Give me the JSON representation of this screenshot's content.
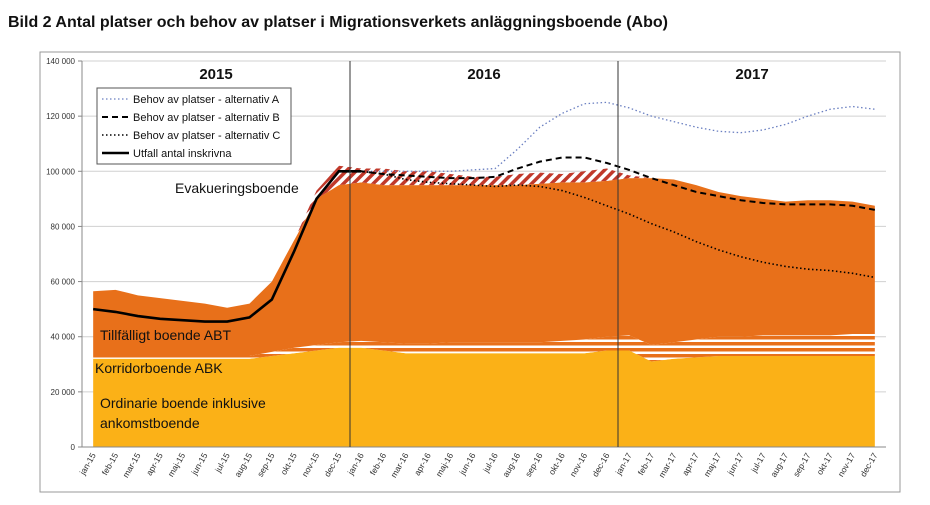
{
  "chart_data": {
    "type": "area",
    "title": "Bild 2 Antal platser och behov av platser i Migrationsverkets anläggningsboende (Abo)",
    "categories": [
      "jan-15",
      "feb-15",
      "mar-15",
      "apr-15",
      "maj-15",
      "jun-15",
      "jul-15",
      "aug-15",
      "sep-15",
      "okt-15",
      "nov-15",
      "dec-15",
      "jan-16",
      "feb-16",
      "mar-16",
      "apr-16",
      "maj-16",
      "jun-16",
      "jul-16",
      "aug-16",
      "sep-16",
      "okt-16",
      "nov-16",
      "dec-16",
      "jan-17",
      "feb-17",
      "mar-17",
      "apr-17",
      "maj-17",
      "jun-17",
      "jul-17",
      "aug-17",
      "sep-17",
      "okt-17",
      "nov-17",
      "dec-17"
    ],
    "year_labels": [
      "2015",
      "2016",
      "2017"
    ],
    "ylim": [
      0,
      140000
    ],
    "yticks": [
      0,
      {
        "value": 20000,
        "label": "20 000"
      },
      {
        "value": 40000,
        "label": "40 000"
      },
      {
        "value": 60000,
        "label": "60 000"
      },
      {
        "value": 80000,
        "label": "80 000"
      },
      {
        "value": 100000,
        "label": "100 000"
      },
      {
        "value": 120000,
        "label": "120 000"
      },
      {
        "value": 140000,
        "label": "140 000"
      }
    ],
    "grid": true,
    "legend": "upper left",
    "areas": [
      {
        "name": "Ordinarie boende inklusive ankomstboende",
        "color": "#fbb117",
        "fill": "solid",
        "values": [
          32000,
          32000,
          32000,
          32000,
          32000,
          32000,
          32000,
          32000,
          33000,
          34000,
          35000,
          36000,
          36000,
          35000,
          34000,
          34000,
          34000,
          34000,
          34000,
          34000,
          34000,
          34000,
          34000,
          35000,
          35000,
          31000,
          32000,
          32500,
          33000,
          33000,
          33000,
          33000,
          33000,
          33000,
          33000,
          33000
        ]
      },
      {
        "name": "Korridorboende ABK",
        "color": "#e8701a",
        "fill": "stripes",
        "values": [
          1000,
          1000,
          1000,
          1000,
          1000,
          1000,
          1000,
          1000,
          1500,
          2000,
          2000,
          2000,
          2500,
          3000,
          3500,
          3500,
          4000,
          4000,
          4000,
          4000,
          4000,
          4500,
          5000,
          5000,
          5500,
          6000,
          6000,
          6500,
          7000,
          7000,
          7500,
          7500,
          7500,
          7500,
          8000,
          8000
        ]
      },
      {
        "name": "Tillfälligt boende ABT",
        "color": "#e8701a",
        "fill": "solid",
        "values": [
          23500,
          24000,
          22000,
          21000,
          20000,
          19000,
          17500,
          19000,
          25500,
          39000,
          53000,
          57000,
          57500,
          57000,
          57500,
          57500,
          57000,
          57000,
          57000,
          57000,
          57500,
          57500,
          57000,
          56500,
          57000,
          60500,
          59000,
          56000,
          52500,
          51000,
          49500,
          48500,
          49000,
          49000,
          48000,
          46500
        ]
      },
      {
        "name": "Evakueringsboende",
        "color": "#c0392b",
        "fill": "hatch",
        "values": [
          0,
          0,
          0,
          0,
          0,
          0,
          0,
          0,
          0,
          0,
          3000,
          7000,
          5000,
          6000,
          5000,
          5000,
          4000,
          3000,
          3000,
          4000,
          4000,
          3000,
          4000,
          4500,
          1000,
          0,
          0,
          0,
          0,
          0,
          0,
          0,
          0,
          0,
          0,
          0
        ]
      }
    ],
    "series": [
      {
        "name": "Behov av platser - alternativ A",
        "color": "#6a7fc1",
        "dash": "dotted-fine",
        "values": [
          null,
          null,
          null,
          null,
          null,
          null,
          null,
          null,
          null,
          null,
          null,
          100000,
          100000,
          100000,
          100000,
          100000,
          100000,
          100500,
          101000,
          108000,
          116000,
          121000,
          124500,
          125000,
          123000,
          120000,
          118000,
          116000,
          114500,
          114000,
          115000,
          117000,
          120000,
          122500,
          123500,
          122500
        ]
      },
      {
        "name": "Behov av platser - alternativ B",
        "color": "#000000",
        "dash": "dashed",
        "values": [
          null,
          null,
          null,
          null,
          null,
          null,
          null,
          null,
          null,
          null,
          null,
          100000,
          100000,
          99000,
          98500,
          98000,
          97500,
          97500,
          98000,
          101000,
          103500,
          105000,
          105000,
          103000,
          100500,
          97500,
          95000,
          92500,
          91000,
          89500,
          88500,
          88000,
          88000,
          88000,
          87500,
          86000
        ]
      },
      {
        "name": "Behov av platser - alternativ C",
        "color": "#000000",
        "dash": "dotted",
        "values": [
          null,
          null,
          null,
          null,
          null,
          null,
          null,
          null,
          null,
          null,
          null,
          100000,
          100000,
          99000,
          97000,
          96000,
          95500,
          95000,
          94500,
          95000,
          94500,
          93000,
          90500,
          87500,
          84500,
          81000,
          78000,
          74500,
          71500,
          69000,
          67000,
          65500,
          64500,
          64000,
          63000,
          61500
        ]
      },
      {
        "name": "Utfall antal inskrivna",
        "color": "#000000",
        "dash": "solid",
        "values": [
          50000,
          49000,
          47500,
          46500,
          46000,
          45500,
          45500,
          47000,
          53500,
          71000,
          90000,
          100000,
          100000,
          null,
          null,
          null,
          null,
          null,
          null,
          null,
          null,
          null,
          null,
          null,
          null,
          null,
          null,
          null,
          null,
          null,
          null,
          null,
          null,
          null,
          null,
          null
        ]
      }
    ]
  }
}
